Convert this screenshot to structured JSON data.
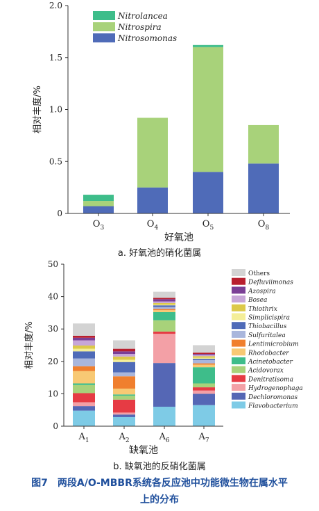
{
  "colors": {
    "axis": "#333333",
    "caption_blue": "#1f4f9c"
  },
  "figure_caption": {
    "line1": "图7　两段A/O-MBBR系统各反应池中功能微生物在属水平",
    "line2": "上的分布"
  },
  "chart_data": [
    {
      "type": "bar",
      "stacked": true,
      "title": "",
      "subtitle": "a. 好氧池的硝化菌属",
      "xlabel": "好氧池",
      "ylabel": "相对丰度/%",
      "ylim": [
        0,
        2.0
      ],
      "yticks": [
        "0",
        "0.5",
        "1.0",
        "1.5",
        "2.0"
      ],
      "ytick_values": [
        0,
        0.5,
        1.0,
        1.5,
        2.0
      ],
      "categories": [
        {
          "base": "O",
          "sub": "3"
        },
        {
          "base": "O",
          "sub": "4"
        },
        {
          "base": "O",
          "sub": "5"
        },
        {
          "base": "O",
          "sub": "8"
        }
      ],
      "legend_position": "top-left",
      "series": [
        {
          "name": "Nitrosomonas",
          "color": "#4f6bb8",
          "values": [
            0.07,
            0.25,
            0.4,
            0.48
          ]
        },
        {
          "name": "Nitrospira",
          "color": "#a8d27a",
          "values": [
            0.05,
            0.67,
            1.2,
            0.37
          ]
        },
        {
          "name": "Nitrolancea",
          "color": "#3ebd8a",
          "values": [
            0.06,
            0.0,
            0.02,
            0.0
          ]
        }
      ]
    },
    {
      "type": "bar",
      "stacked": true,
      "title": "",
      "subtitle": "b. 缺氧池的反硝化菌属",
      "xlabel": "缺氧池",
      "ylabel": "相对丰度/%",
      "ylim": [
        0,
        50
      ],
      "yticks": [
        "0",
        "10",
        "20",
        "30",
        "40",
        "50"
      ],
      "ytick_values": [
        0,
        10,
        20,
        30,
        40,
        50
      ],
      "categories": [
        {
          "base": "A",
          "sub": "1"
        },
        {
          "base": "A",
          "sub": "2"
        },
        {
          "base": "A",
          "sub": "6"
        },
        {
          "base": "A",
          "sub": "7"
        }
      ],
      "legend_position": "right",
      "series": [
        {
          "name": "Flavobacterium",
          "color": "#7ecbe6",
          "values": [
            4.8,
            2.8,
            6.0,
            6.5
          ]
        },
        {
          "name": "Dechloromonas",
          "color": "#5567b5",
          "values": [
            1.4,
            0.8,
            13.5,
            3.5
          ]
        },
        {
          "name": "Hydrogenophaga",
          "color": "#f3a0a6",
          "values": [
            1.2,
            0.6,
            9.0,
            1.0
          ]
        },
        {
          "name": "Denitratisoma",
          "color": "#e63b44",
          "values": [
            2.8,
            4.0,
            0.7,
            1.0
          ]
        },
        {
          "name": "Acidovorax",
          "color": "#a8d27a",
          "values": [
            2.5,
            1.2,
            3.5,
            1.2
          ]
        },
        {
          "name": "Acinetobacter",
          "color": "#3ebd8a",
          "values": [
            0.5,
            0.4,
            2.5,
            5.0
          ]
        },
        {
          "name": "Rhodobacter",
          "color": "#f8c974",
          "values": [
            3.8,
            1.8,
            0.6,
            0.8
          ]
        },
        {
          "name": "Lentimicrobium",
          "color": "#f07f2e",
          "values": [
            1.5,
            3.8,
            0.4,
            0.4
          ]
        },
        {
          "name": "Sulfuritalea",
          "color": "#a9b6dc",
          "values": [
            2.4,
            1.2,
            0.6,
            1.0
          ]
        },
        {
          "name": "Thiobacillus",
          "color": "#4f6bb8",
          "values": [
            2.2,
            3.2,
            0.5,
            0.4
          ]
        },
        {
          "name": "Simplicispira",
          "color": "#f4ee98",
          "values": [
            0.8,
            0.7,
            0.2,
            0.3
          ]
        },
        {
          "name": "Thiothrix",
          "color": "#dcc94a",
          "values": [
            1.0,
            1.0,
            0.5,
            0.5
          ]
        },
        {
          "name": "Bosea",
          "color": "#c7a6d8",
          "values": [
            1.6,
            0.8,
            0.5,
            0.4
          ]
        },
        {
          "name": "Azospira",
          "color": "#7a3f96",
          "values": [
            0.8,
            0.8,
            0.7,
            0.3
          ]
        },
        {
          "name": "Defluviimonas",
          "color": "#b81f2f",
          "values": [
            0.6,
            0.8,
            0.4,
            0.4
          ]
        },
        {
          "name": "Others",
          "color": "#d3d3d3",
          "values": [
            3.8,
            2.6,
            1.9,
            2.3
          ]
        }
      ]
    }
  ]
}
